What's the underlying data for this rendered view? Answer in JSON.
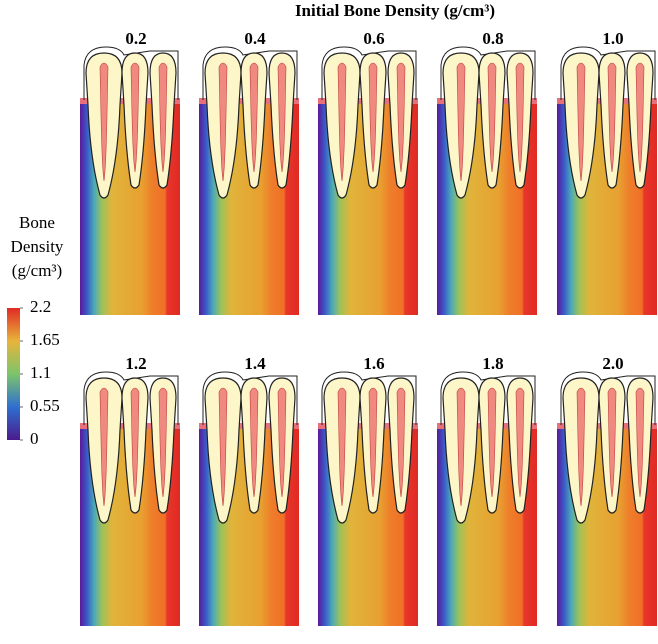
{
  "title": "Initial Bone Density (g/cm³)",
  "panels": [
    {
      "label": "0.2"
    },
    {
      "label": "0.4"
    },
    {
      "label": "0.6"
    },
    {
      "label": "0.8"
    },
    {
      "label": "1.0"
    },
    {
      "label": "1.2"
    },
    {
      "label": "1.4"
    },
    {
      "label": "1.6"
    },
    {
      "label": "1.8"
    },
    {
      "label": "2.0"
    }
  ],
  "colorbar": {
    "label_lines": [
      "Bone",
      "Density",
      "(g/cm³)"
    ],
    "range": [
      0,
      2.2
    ],
    "ticks": [
      0,
      0.55,
      1.1,
      1.65,
      2.2
    ]
  }
}
